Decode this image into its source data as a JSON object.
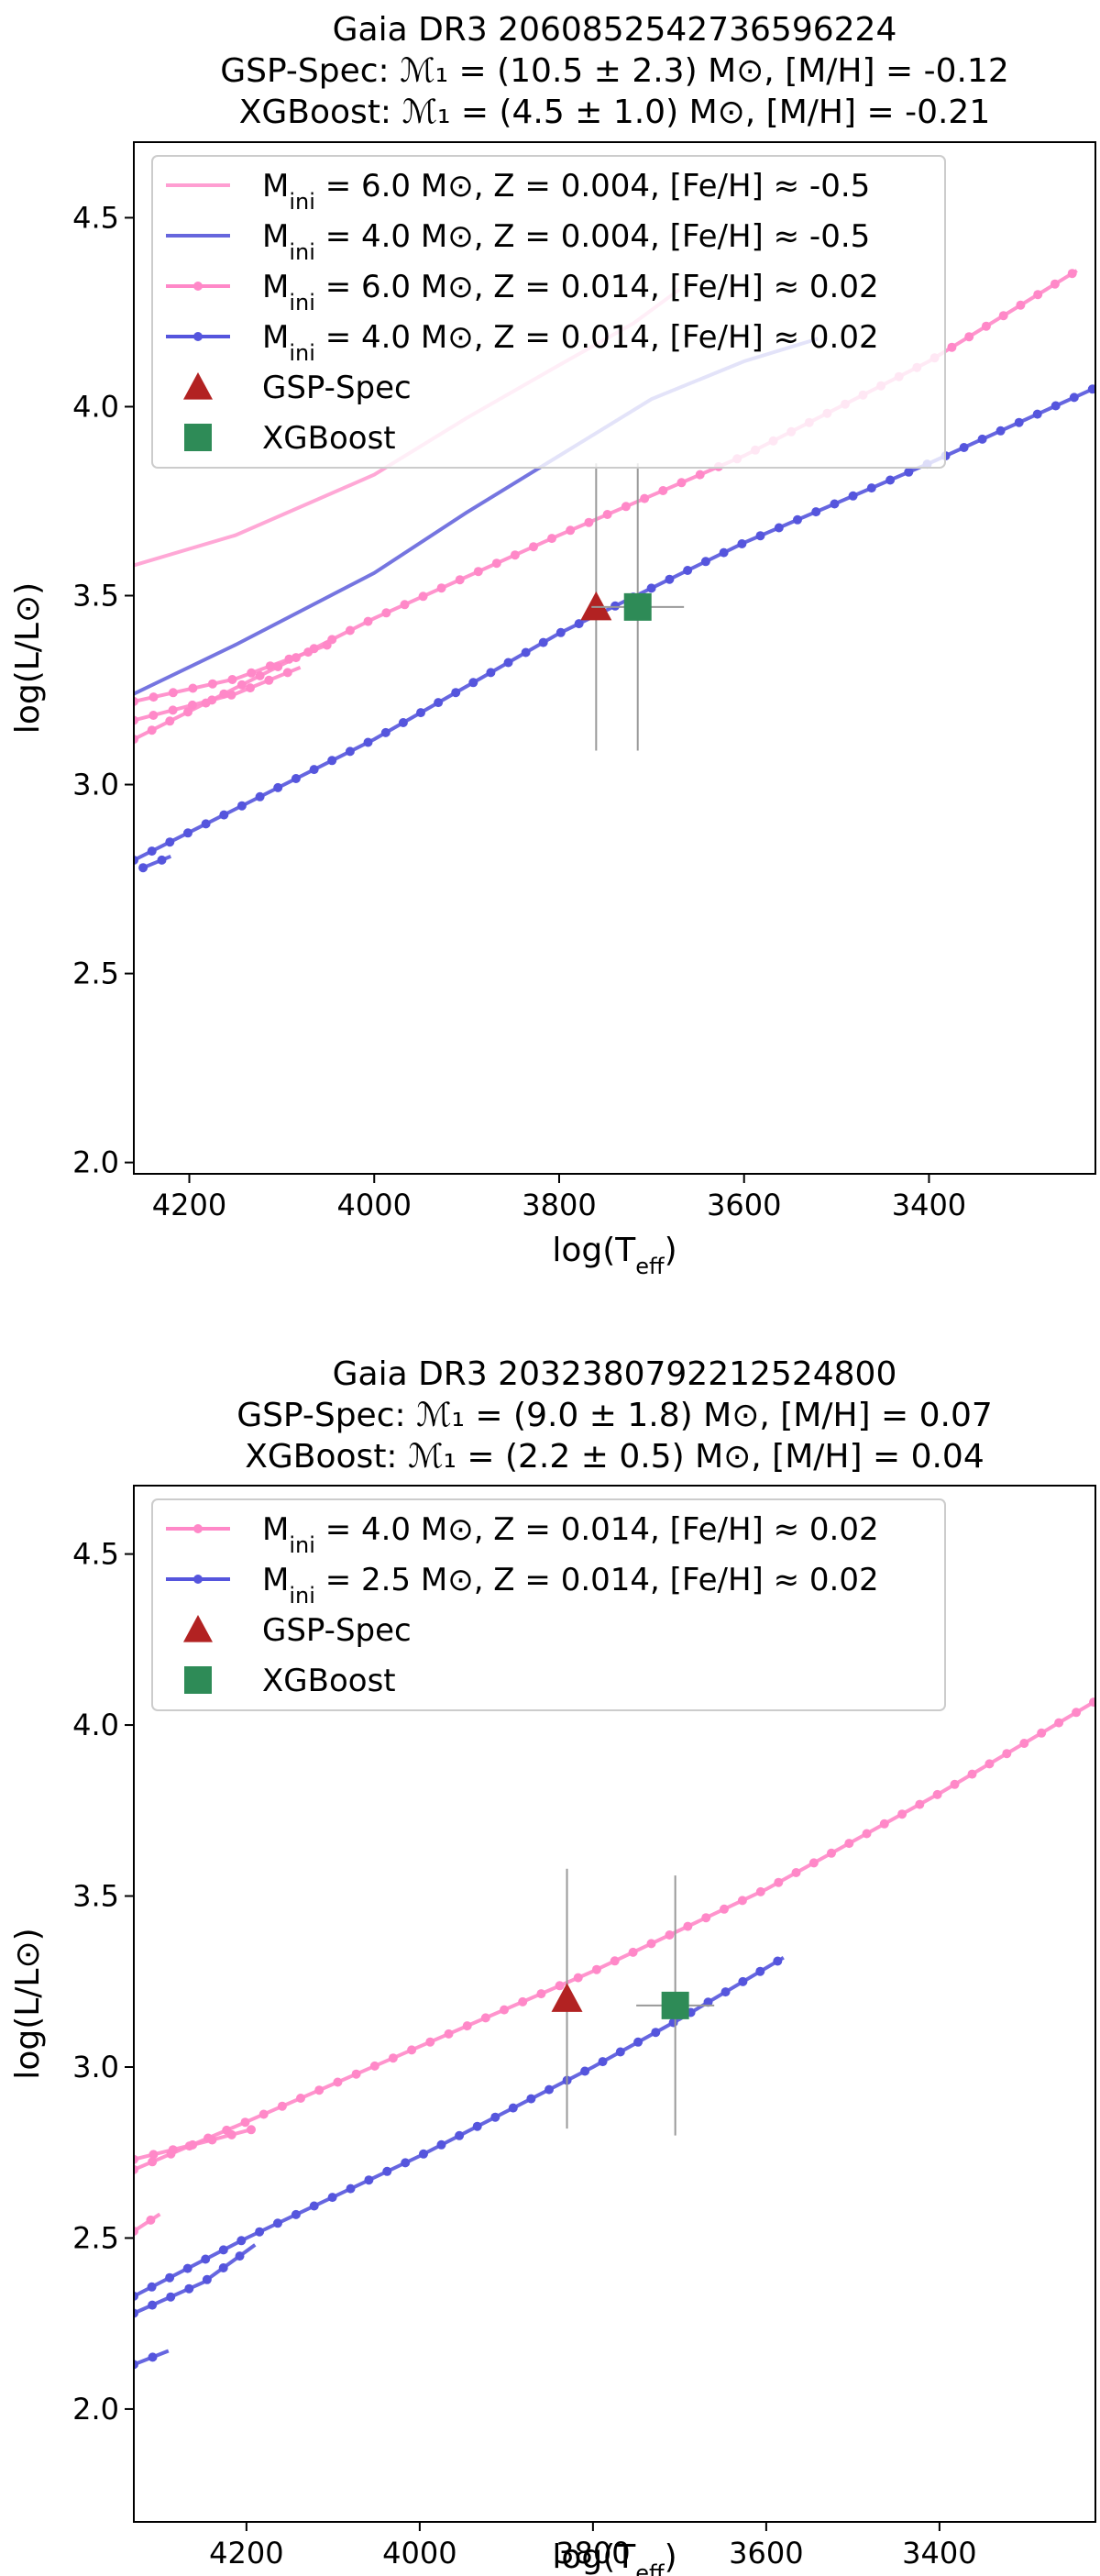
{
  "chart_data": [
    {
      "type": "line",
      "title_lines": [
        "Gaia DR3 2060852542736596224",
        "GSP-Spec: ℳ₁ = (10.5 ± 2.3) M⊙, [M/H] = -0.12",
        "XGBoost: ℳ₁ =   (4.5 ± 1.0) M⊙, [M/H] = -0.21"
      ],
      "xlabel": "log(T_eff)",
      "ylabel": "log(L/L⊙)",
      "xlim": [
        4260,
        3220
      ],
      "ylim": [
        1.97,
        4.7
      ],
      "xticks": [
        4200,
        4000,
        3800,
        3600,
        3400
      ],
      "yticks": [
        2.0,
        2.5,
        3.0,
        3.5,
        4.0,
        4.5
      ],
      "xtick_labels": [
        "4200",
        "4000",
        "3800",
        "3600",
        "3400"
      ],
      "ytick_labels": [
        "2.0",
        "2.5",
        "3.0",
        "3.5",
        "4.0",
        "4.5"
      ],
      "legend_position": "upper-left",
      "series": [
        {
          "name": "M_ini = 6.0 M⊙, Z = 0.004, [Fe/H] ≈ -0.5",
          "color": "#ff9ed2",
          "markers": false,
          "segments": [
            [
              [
                4260,
                3.58
              ],
              [
                4150,
                3.66
              ],
              [
                4000,
                3.82
              ],
              [
                3900,
                3.97
              ],
              [
                3800,
                4.11
              ],
              [
                3720,
                4.22
              ],
              [
                3670,
                4.31
              ]
            ]
          ]
        },
        {
          "name": "M_ini = 4.0 M⊙, Z = 0.004, [Fe/H] ≈ -0.5",
          "color": "#6666dd",
          "markers": false,
          "segments": [
            [
              [
                4260,
                3.24
              ],
              [
                4150,
                3.37
              ],
              [
                4000,
                3.56
              ],
              [
                3900,
                3.72
              ],
              [
                3800,
                3.87
              ],
              [
                3700,
                4.02
              ],
              [
                3600,
                4.12
              ],
              [
                3520,
                4.18
              ]
            ]
          ]
        },
        {
          "name": "M_ini = 6.0 M⊙, Z = 0.014, [Fe/H] ≈ 0.02",
          "color": "#ff88c8",
          "markers": true,
          "segments": [
            [
              [
                4260,
                3.12
              ],
              [
                4000,
                3.44
              ],
              [
                3800,
                3.66
              ],
              [
                3600,
                3.87
              ],
              [
                3400,
                4.12
              ],
              [
                3240,
                4.36
              ]
            ],
            [
              [
                4260,
                3.22
              ],
              [
                4150,
                3.28
              ],
              [
                4050,
                3.37
              ]
            ],
            [
              [
                4260,
                3.17
              ],
              [
                4150,
                3.24
              ],
              [
                4080,
                3.31
              ]
            ]
          ]
        },
        {
          "name": "M_ini = 4.0 M⊙, Z = 0.014, [Fe/H] ≈ 0.02",
          "color": "#5555dd",
          "markers": true,
          "segments": [
            [
              [
                4260,
                2.8
              ],
              [
                4000,
                3.12
              ],
              [
                3800,
                3.4
              ],
              [
                3600,
                3.64
              ],
              [
                3400,
                3.85
              ],
              [
                3220,
                4.05
              ]
            ],
            [
              [
                4250,
                2.78
              ],
              [
                4220,
                2.81
              ]
            ]
          ]
        }
      ],
      "points": [
        {
          "name": "GSP-Spec",
          "marker": "triangle",
          "color": "#b22222",
          "x": 3760,
          "y": 3.47,
          "xerr": 0,
          "yerr": 0.38
        },
        {
          "name": "XGBoost",
          "marker": "square",
          "color": "#2e8b57",
          "x": 3715,
          "y": 3.47,
          "xerr": 50,
          "yerr": 0.38
        }
      ]
    },
    {
      "type": "line",
      "title_lines": [
        "Gaia DR3 2032380792212524800",
        "GSP-Spec: ℳ₁ = (9.0 ± 1.8) M⊙, [M/H] = 0.07",
        "XGBoost: ℳ₁ = (2.2 ± 0.5) M⊙, [M/H] = 0.04"
      ],
      "xlabel": "log(T_eff)",
      "ylabel": "log(L/L⊙)",
      "xlim": [
        4330,
        3220
      ],
      "ylim": [
        1.67,
        4.7
      ],
      "xticks": [
        4200,
        4000,
        3800,
        3600,
        3400
      ],
      "yticks": [
        2.0,
        2.5,
        3.0,
        3.5,
        4.0,
        4.5
      ],
      "xtick_labels": [
        "4200",
        "4000",
        "3800",
        "3600",
        "3400"
      ],
      "ytick_labels": [
        "2.0",
        "2.5",
        "3.0",
        "3.5",
        "4.0",
        "4.5"
      ],
      "legend_position": "upper-left",
      "series": [
        {
          "name": "M_ini = 4.0 M⊙, Z = 0.014, [Fe/H] ≈ 0.02",
          "color": "#ff88c8",
          "markers": true,
          "segments": [
            [
              [
                4330,
                2.7
              ],
              [
                4200,
                2.84
              ],
              [
                4000,
                3.06
              ],
              [
                3800,
                3.28
              ],
              [
                3600,
                3.52
              ],
              [
                3400,
                3.8
              ],
              [
                3220,
                4.07
              ]
            ],
            [
              [
                4330,
                2.73
              ],
              [
                4250,
                2.78
              ],
              [
                4190,
                2.82
              ]
            ],
            [
              [
                4330,
                2.52
              ],
              [
                4300,
                2.57
              ]
            ]
          ]
        },
        {
          "name": "M_ini = 2.5 M⊙, Z = 0.014, [Fe/H] ≈ 0.02",
          "color": "#5555dd",
          "markers": true,
          "segments": [
            [
              [
                4330,
                2.33
              ],
              [
                4200,
                2.5
              ],
              [
                4000,
                2.74
              ],
              [
                3800,
                3.0
              ],
              [
                3700,
                3.14
              ],
              [
                3580,
                3.32
              ]
            ],
            [
              [
                4330,
                2.28
              ],
              [
                4250,
                2.37
              ],
              [
                4190,
                2.48
              ]
            ],
            [
              [
                4330,
                2.13
              ],
              [
                4290,
                2.17
              ]
            ]
          ]
        }
      ],
      "points": [
        {
          "name": "GSP-Spec",
          "marker": "triangle",
          "color": "#b22222",
          "x": 3830,
          "y": 3.2,
          "xerr": 0,
          "yerr": 0.38
        },
        {
          "name": "XGBoost",
          "marker": "square",
          "color": "#2e8b57",
          "x": 3705,
          "y": 3.18,
          "xerr": 45,
          "yerr": 0.38
        }
      ]
    }
  ]
}
